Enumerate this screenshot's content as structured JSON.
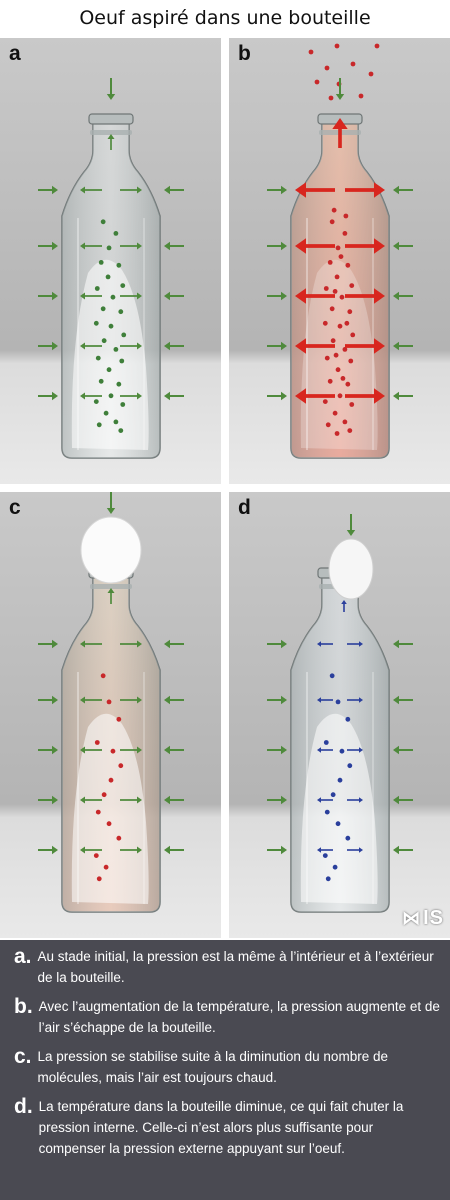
{
  "title": "Oeuf aspiré dans une bouteille",
  "panels": [
    {
      "letter": "a",
      "state": "initial",
      "molecule_color": "#3f7f3a"
    },
    {
      "letter": "b",
      "state": "heated",
      "molecule_color": "#c8282a"
    },
    {
      "letter": "c",
      "state": "stabilized",
      "molecule_color": "#c8282a"
    },
    {
      "letter": "d",
      "state": "cooled",
      "molecule_color": "#2a3f9c"
    }
  ],
  "logo": "IS",
  "legend": [
    {
      "letter": "a.",
      "text": "Au stade initial, la pression est la même à l’intérieur et à l’extérieur de la bouteille."
    },
    {
      "letter": "b.",
      "text": "Avec l’augmentation de la température, la pression augmente et de l’air s’échappe de la bouteille."
    },
    {
      "letter": "c.",
      "text": "La pression se stabilise suite à la diminution du nombre de molécules, mais l’air est toujours chaud."
    },
    {
      "letter": "d.",
      "text": "La température dans la bouteille diminue, ce qui fait chuter la pression interne. Celle-ci n’est alors plus suffisante pour compenser la pression externe appuyant sur l’oeuf."
    }
  ],
  "colors": {
    "outside_arrow": "#4f8a3c",
    "inside_arrow_heated": "#d8261e",
    "inside_arrow_cooled": "#2a3f9c",
    "legend_background": "#4a4a52"
  }
}
